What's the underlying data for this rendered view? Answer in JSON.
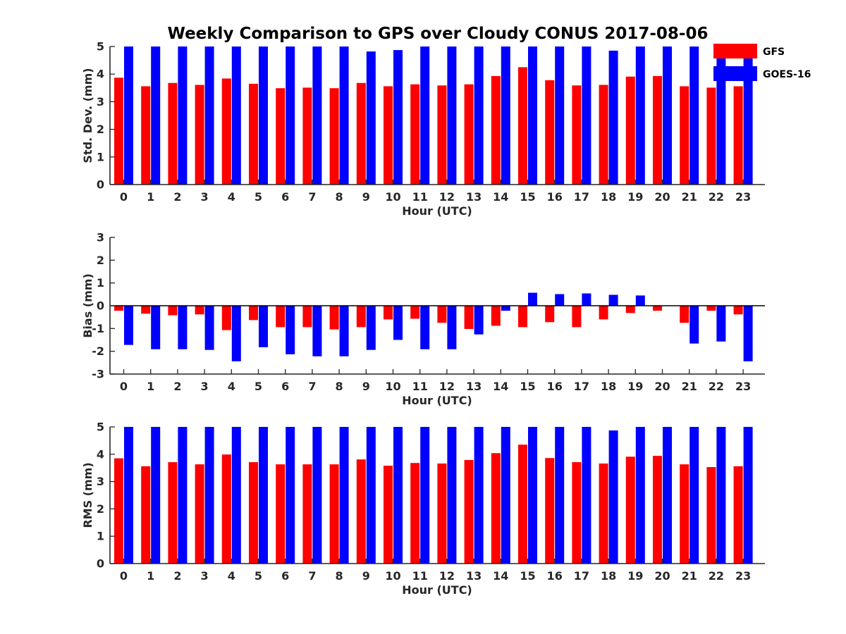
{
  "title": "Weekly Comparison to GPS over Cloudy CONUS 2017-08-06",
  "colors": {
    "gfs": "#ff0000",
    "goes": "#0000ff",
    "axis": "#262626"
  },
  "legend": [
    {
      "name": "GFS",
      "color": "#ff0000"
    },
    {
      "name": "GOES-16",
      "color": "#0000ff"
    }
  ],
  "chart_data": [
    {
      "type": "bar",
      "title": "Weekly Comparison to GPS over Cloudy CONUS 2017-08-06",
      "xlabel": "Hour (UTC)",
      "ylabel": "Std. Dev. (mm)",
      "ylim": [
        0,
        5
      ],
      "yticks": [
        "0",
        "1",
        "2",
        "3",
        "4",
        "5"
      ],
      "categories": [
        "0",
        "1",
        "2",
        "3",
        "4",
        "5",
        "6",
        "7",
        "8",
        "9",
        "10",
        "11",
        "12",
        "13",
        "14",
        "15",
        "16",
        "17",
        "18",
        "19",
        "20",
        "21",
        "22",
        "23"
      ],
      "legend_position": "top-right",
      "series": [
        {
          "name": "GFS",
          "color": "#ff0000",
          "values": [
            3.87,
            3.56,
            3.68,
            3.61,
            3.84,
            3.65,
            3.49,
            3.51,
            3.49,
            3.68,
            3.56,
            3.63,
            3.59,
            3.63,
            3.93,
            4.25,
            3.78,
            3.59,
            3.61,
            3.91,
            3.93,
            3.56,
            3.51,
            3.56
          ]
        },
        {
          "name": "GOES-16",
          "color": "#0000ff",
          "values": [
            5.0,
            5.0,
            5.0,
            5.0,
            5.0,
            5.0,
            5.0,
            5.0,
            5.0,
            4.82,
            4.87,
            5.0,
            5.0,
            5.0,
            5.0,
            5.0,
            5.0,
            5.0,
            4.85,
            5.0,
            5.0,
            5.0,
            5.0,
            5.0
          ]
        }
      ]
    },
    {
      "type": "bar",
      "xlabel": "Hour (UTC)",
      "ylabel": "Bias (mm)",
      "ylim": [
        -3,
        3
      ],
      "yticks": [
        "-3",
        "-2",
        "-1",
        "0",
        "1",
        "2",
        "3"
      ],
      "categories": [
        "0",
        "1",
        "2",
        "3",
        "4",
        "5",
        "6",
        "7",
        "8",
        "9",
        "10",
        "11",
        "12",
        "13",
        "14",
        "15",
        "16",
        "17",
        "18",
        "19",
        "20",
        "21",
        "22",
        "23"
      ],
      "series": [
        {
          "name": "GFS",
          "color": "#ff0000",
          "values": [
            -0.22,
            -0.35,
            -0.42,
            -0.38,
            -1.07,
            -0.63,
            -0.94,
            -0.94,
            -1.04,
            -0.94,
            -0.6,
            -0.57,
            -0.75,
            -1.02,
            -0.88,
            -0.94,
            -0.72,
            -0.94,
            -0.6,
            -0.32,
            -0.22,
            -0.75,
            -0.22,
            -0.38
          ]
        },
        {
          "name": "GOES-16",
          "color": "#0000ff",
          "values": [
            -1.72,
            -1.91,
            -1.91,
            -1.94,
            -2.44,
            -1.82,
            -2.13,
            -2.22,
            -2.22,
            -1.94,
            -1.5,
            -1.91,
            -1.91,
            -1.26,
            -0.22,
            0.57,
            0.51,
            0.54,
            0.48,
            0.45,
            0.0,
            -1.66,
            -1.57,
            -2.44
          ]
        }
      ]
    },
    {
      "type": "bar",
      "xlabel": "Hour (UTC)",
      "ylabel": "RMS (mm)",
      "ylim": [
        0,
        5
      ],
      "yticks": [
        "0",
        "1",
        "2",
        "3",
        "4",
        "5"
      ],
      "categories": [
        "0",
        "1",
        "2",
        "3",
        "4",
        "5",
        "6",
        "7",
        "8",
        "9",
        "10",
        "11",
        "12",
        "13",
        "14",
        "15",
        "16",
        "17",
        "18",
        "19",
        "20",
        "21",
        "22",
        "23"
      ],
      "series": [
        {
          "name": "GFS",
          "color": "#ff0000",
          "values": [
            3.85,
            3.56,
            3.71,
            3.63,
            3.99,
            3.71,
            3.63,
            3.63,
            3.63,
            3.81,
            3.58,
            3.68,
            3.66,
            3.79,
            4.04,
            4.35,
            3.86,
            3.71,
            3.66,
            3.91,
            3.94,
            3.63,
            3.53,
            3.56
          ]
        },
        {
          "name": "GOES-16",
          "color": "#0000ff",
          "values": [
            5.0,
            5.0,
            5.0,
            5.0,
            5.0,
            5.0,
            5.0,
            5.0,
            5.0,
            5.0,
            5.0,
            5.0,
            5.0,
            5.0,
            5.0,
            5.0,
            5.0,
            5.0,
            4.87,
            5.0,
            5.0,
            5.0,
            5.0,
            5.0
          ]
        }
      ]
    }
  ]
}
